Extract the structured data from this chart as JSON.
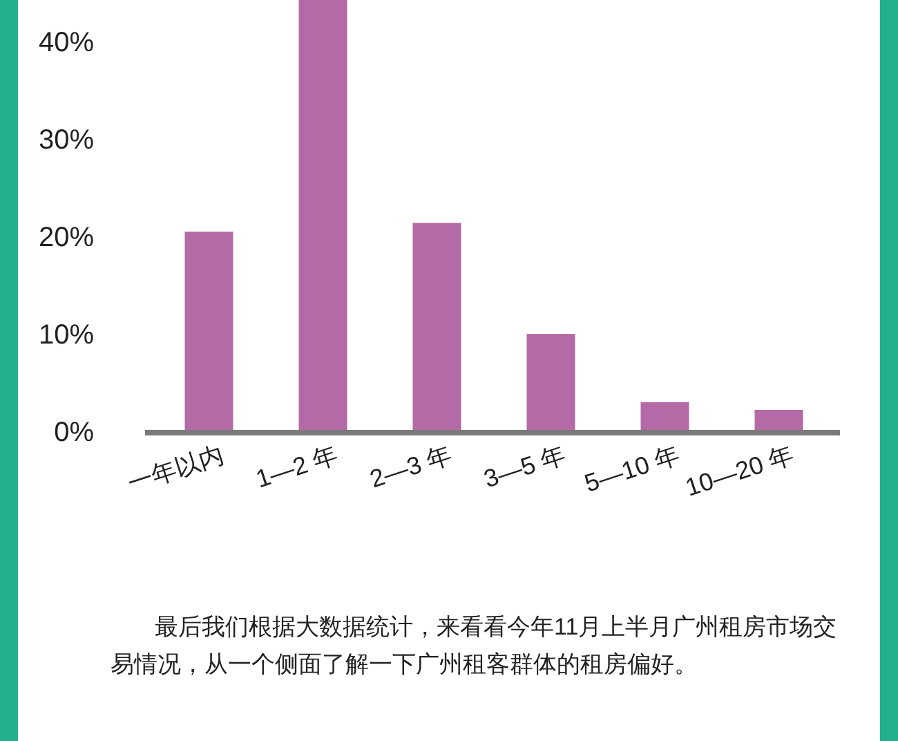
{
  "chart_data": {
    "type": "bar",
    "categories": [
      "一年以内",
      "1—2 年",
      "2—3 年",
      "3—5 年",
      "5—10 年",
      "10—20 年"
    ],
    "values": [
      20.5,
      44.3,
      21.4,
      10,
      3,
      2.2
    ],
    "color": "#b46aa6",
    "ylim": [
      0,
      45
    ],
    "yticks": [
      {
        "value": 0,
        "label": "0%"
      },
      {
        "value": 10,
        "label": "10%"
      },
      {
        "value": 20,
        "label": "20%"
      },
      {
        "value": 30,
        "label": "30%"
      },
      {
        "value": 40,
        "label": "40%"
      }
    ],
    "grid": false,
    "annotations": [
      "最后我们根据大数据统计，来看看今年11月上半月广州租房市场交易情况，从一个侧面了解一下广州租客群体的租房偏好。"
    ]
  }
}
